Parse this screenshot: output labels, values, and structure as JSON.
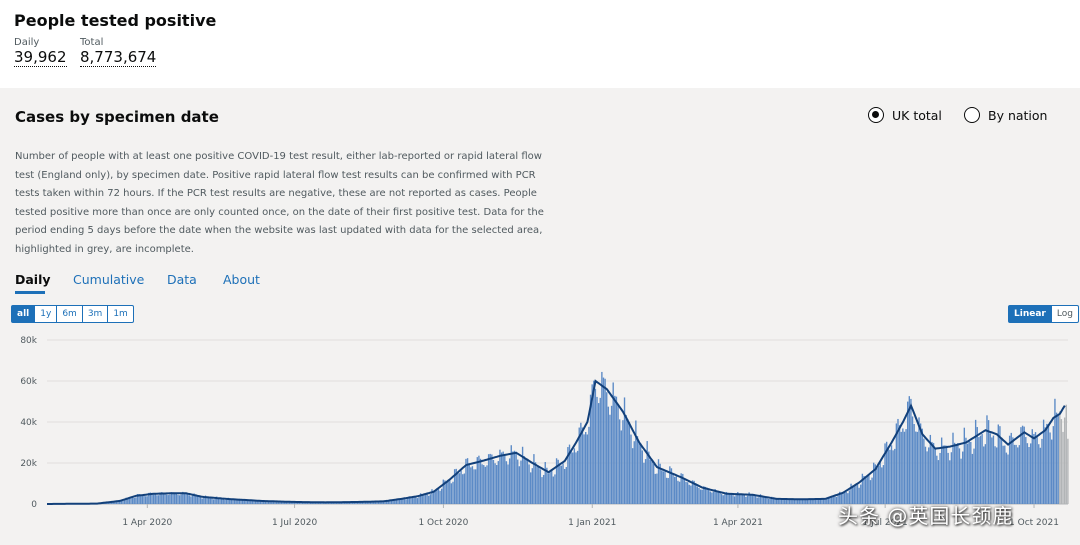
{
  "header": {
    "title": "People tested positive",
    "daily_label": "Daily",
    "daily_value": "39,962",
    "total_label": "Total",
    "total_value": "8,773,674"
  },
  "card": {
    "title": "Cases by specimen date",
    "radio_uk": "UK total",
    "radio_nation": "By nation",
    "selected": "UK total",
    "description": "Number of people with at least one positive COVID-19 test result, either lab-reported or rapid lateral flow test (England only), by specimen date. Positive rapid lateral flow test results can be confirmed with PCR tests taken within 72 hours. If the PCR test results are negative, these are not reported as cases. People tested positive more than once are only counted once, on the date of their first positive test. Data for the period ending 5 days before the date when the website was last updated with data for the selected area, highlighted in grey, are incomplete.",
    "tabs": [
      "Daily",
      "Cumulative",
      "Data",
      "About"
    ],
    "active_tab": "Daily"
  },
  "range_buttons": [
    "all",
    "1y",
    "6m",
    "3m",
    "1m"
  ],
  "active_range": "all",
  "scale_buttons": [
    "Linear",
    "Log"
  ],
  "active_scale": "Linear",
  "watermark": "头条 @英国长颈鹿",
  "colors": {
    "bar": "#5b8ac6",
    "bar_incomplete": "#b1b4b6",
    "line": "#12407a",
    "tab": "#1d70b8"
  },
  "chart_data": {
    "type": "bar",
    "ylim": [
      0,
      80000
    ],
    "yticks": [
      "0",
      "20k",
      "40k",
      "60k",
      "80k"
    ],
    "ytick_values": [
      0,
      20000,
      40000,
      60000,
      80000
    ],
    "xticks": [
      "1 Apr 2020",
      "1 Jul 2020",
      "1 Oct 2020",
      "1 Jan 2021",
      "1 Apr 2021",
      "1 Jul 2021",
      "1 Oct 2021"
    ],
    "xtick_dates": [
      "2020-04-01",
      "2020-07-01",
      "2020-10-01",
      "2021-01-01",
      "2021-04-01",
      "2021-07-01",
      "2021-10-01"
    ],
    "x_range": [
      "2020-01-30",
      "2021-10-22"
    ],
    "incomplete_from": "2021-10-17",
    "series": [
      {
        "name": "Daily cases (approx.)",
        "x": [
          "2020-01-30",
          "2020-03-01",
          "2020-03-15",
          "2020-03-25",
          "2020-04-05",
          "2020-04-15",
          "2020-04-25",
          "2020-05-05",
          "2020-05-20",
          "2020-06-10",
          "2020-07-01",
          "2020-07-20",
          "2020-08-10",
          "2020-08-25",
          "2020-09-05",
          "2020-09-15",
          "2020-09-25",
          "2020-10-05",
          "2020-10-15",
          "2020-10-25",
          "2020-11-05",
          "2020-11-15",
          "2020-11-25",
          "2020-12-05",
          "2020-12-15",
          "2020-12-22",
          "2020-12-29",
          "2021-01-03",
          "2021-01-10",
          "2021-01-20",
          "2021-01-30",
          "2021-02-10",
          "2021-02-25",
          "2021-03-10",
          "2021-03-25",
          "2021-04-10",
          "2021-04-25",
          "2021-05-10",
          "2021-05-25",
          "2021-06-05",
          "2021-06-15",
          "2021-06-25",
          "2021-07-05",
          "2021-07-12",
          "2021-07-17",
          "2021-07-24",
          "2021-08-01",
          "2021-08-10",
          "2021-08-20",
          "2021-09-01",
          "2021-09-08",
          "2021-09-15",
          "2021-09-25",
          "2021-10-01",
          "2021-10-08",
          "2021-10-13",
          "2021-10-17",
          "2021-10-20",
          "2021-10-22"
        ],
        "values": [
          0,
          200,
          1500,
          4000,
          5000,
          5200,
          5200,
          3500,
          2500,
          1500,
          1000,
          800,
          1000,
          1300,
          2500,
          3800,
          6000,
          12000,
          19000,
          21000,
          23500,
          25000,
          20000,
          15500,
          21000,
          30000,
          40000,
          60000,
          56000,
          45000,
          30000,
          18000,
          13000,
          8000,
          5000,
          4500,
          2500,
          2300,
          2500,
          5500,
          10500,
          17000,
          30000,
          40000,
          48000,
          34000,
          27000,
          28000,
          30000,
          36000,
          34000,
          29000,
          35000,
          32000,
          36000,
          42000,
          44000,
          48000,
          30000
        ]
      }
    ]
  }
}
